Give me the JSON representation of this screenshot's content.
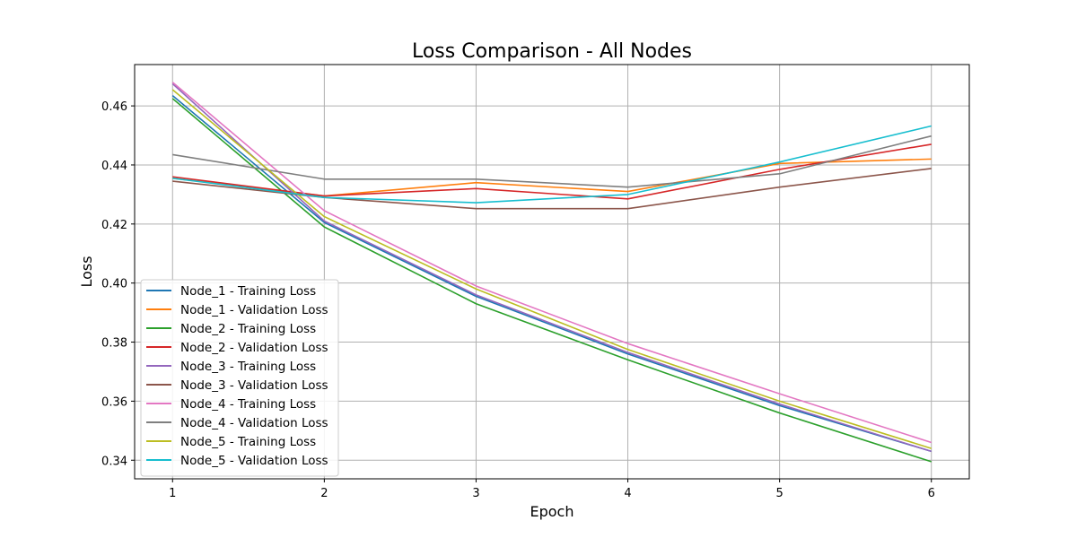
{
  "chart_data": {
    "type": "line",
    "title": "Loss Comparison - All Nodes",
    "xlabel": "Epoch",
    "ylabel": "Loss",
    "x": [
      1,
      2,
      3,
      4,
      5,
      6
    ],
    "xlim": [
      0.75,
      6.25
    ],
    "ylim": [
      0.3337,
      0.474
    ],
    "xticks": [
      1,
      2,
      3,
      4,
      5,
      6
    ],
    "yticks": [
      0.34,
      0.36,
      0.38,
      0.4,
      0.42,
      0.44,
      0.46
    ],
    "ytick_labels": [
      "0.34",
      "0.36",
      "0.38",
      "0.40",
      "0.42",
      "0.44",
      "0.46"
    ],
    "grid": true,
    "legend_position": "lower-left",
    "series": [
      {
        "name": "Node_1 - Training Loss",
        "color": "#1f77b4",
        "values": [
          0.4635,
          0.4205,
          0.3955,
          0.376,
          0.3585,
          0.343
        ]
      },
      {
        "name": "Node_1 - Validation Loss",
        "color": "#ff7f0e",
        "values": [
          0.4355,
          0.4295,
          0.434,
          0.431,
          0.4405,
          0.442
        ]
      },
      {
        "name": "Node_2 - Training Loss",
        "color": "#2ca02c",
        "values": [
          0.4625,
          0.419,
          0.393,
          0.374,
          0.356,
          0.3395
        ]
      },
      {
        "name": "Node_2 - Validation Loss",
        "color": "#d62728",
        "values": [
          0.436,
          0.4295,
          0.432,
          0.4285,
          0.4385,
          0.447
        ]
      },
      {
        "name": "Node_3 - Training Loss",
        "color": "#9467bd",
        "values": [
          0.4675,
          0.421,
          0.396,
          0.3765,
          0.359,
          0.343
        ]
      },
      {
        "name": "Node_3 - Validation Loss",
        "color": "#8c564b",
        "values": [
          0.4345,
          0.429,
          0.4252,
          0.4252,
          0.4325,
          0.4388
        ]
      },
      {
        "name": "Node_4 - Training Loss",
        "color": "#e377c2",
        "values": [
          0.468,
          0.4245,
          0.399,
          0.3795,
          0.3625,
          0.346
        ]
      },
      {
        "name": "Node_4 - Validation Loss",
        "color": "#7f7f7f",
        "values": [
          0.4435,
          0.4352,
          0.4352,
          0.4325,
          0.437,
          0.4498
        ]
      },
      {
        "name": "Node_5 - Training Loss",
        "color": "#bcbd22",
        "values": [
          0.4655,
          0.4225,
          0.398,
          0.3775,
          0.36,
          0.344
        ]
      },
      {
        "name": "Node_5 - Validation Loss",
        "color": "#17becf",
        "values": [
          0.4355,
          0.429,
          0.4272,
          0.43,
          0.441,
          0.4532
        ]
      }
    ]
  }
}
